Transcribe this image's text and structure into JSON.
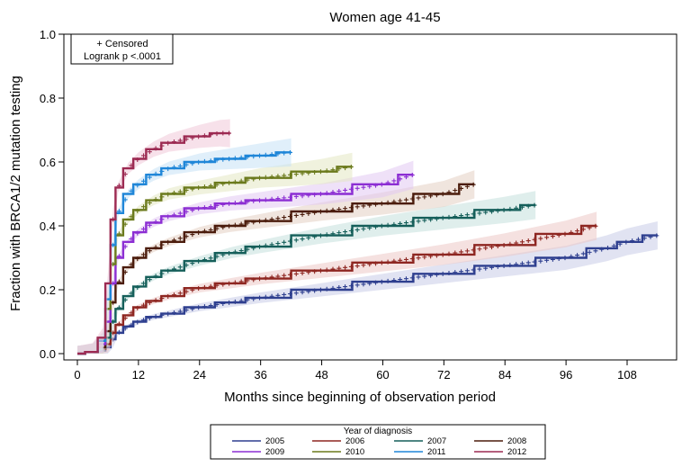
{
  "chart_data": {
    "type": "line",
    "title": "Women age 41-45",
    "xlabel": "Months since beginning of observation period",
    "ylabel": "Fraction with BRCA1/2 mutation testing",
    "xlim": [
      0,
      120
    ],
    "ylim": [
      0.0,
      1.0
    ],
    "x_ticks": [
      "0",
      "12",
      "24",
      "36",
      "48",
      "60",
      "72",
      "84",
      "96",
      "108"
    ],
    "y_ticks": [
      "0.0",
      "0.2",
      "0.4",
      "0.6",
      "0.8",
      "1.0"
    ],
    "grid": false,
    "inset_legend": {
      "line1": "+ Censored",
      "line2": "Logrank p <.0001",
      "placement": "top-left"
    },
    "legend": {
      "title": "Year of diagnosis",
      "placement": "bottom"
    },
    "series": [
      {
        "name": "2005",
        "color": "#2e3f8f",
        "band": "#c8cce8",
        "x": [
          0,
          3,
          5,
          6,
          7,
          8,
          10,
          12,
          15,
          18,
          24,
          30,
          36,
          48,
          60,
          72,
          84,
          96,
          104,
          108,
          114
        ],
        "y": [
          0,
          0.005,
          0.01,
          0.02,
          0.045,
          0.065,
          0.085,
          0.1,
          0.115,
          0.125,
          0.145,
          0.16,
          0.175,
          0.2,
          0.225,
          0.25,
          0.275,
          0.3,
          0.33,
          0.35,
          0.37
        ]
      },
      {
        "name": "2006",
        "color": "#8e2621",
        "band": "#ecc9c7",
        "x": [
          0,
          3,
          5,
          6,
          7,
          8,
          10,
          12,
          15,
          18,
          24,
          30,
          36,
          48,
          60,
          72,
          84,
          96,
          102
        ],
        "y": [
          0,
          0.005,
          0.015,
          0.03,
          0.065,
          0.09,
          0.12,
          0.145,
          0.165,
          0.18,
          0.205,
          0.22,
          0.235,
          0.26,
          0.285,
          0.31,
          0.34,
          0.375,
          0.4
        ]
      },
      {
        "name": "2007",
        "color": "#155f5a",
        "band": "#c4e0dc",
        "x": [
          0,
          3,
          5,
          6,
          7,
          8,
          10,
          12,
          15,
          18,
          24,
          30,
          36,
          48,
          60,
          72,
          84,
          90
        ],
        "y": [
          0,
          0.005,
          0.02,
          0.05,
          0.1,
          0.14,
          0.18,
          0.21,
          0.24,
          0.26,
          0.29,
          0.315,
          0.335,
          0.37,
          0.4,
          0.425,
          0.45,
          0.465
        ]
      },
      {
        "name": "2008",
        "color": "#4b1c0c",
        "band": "#e3cfc3",
        "x": [
          0,
          3,
          5,
          6,
          7,
          8,
          10,
          12,
          15,
          18,
          24,
          30,
          36,
          48,
          60,
          72,
          78
        ],
        "y": [
          0,
          0.005,
          0.02,
          0.07,
          0.16,
          0.22,
          0.27,
          0.3,
          0.33,
          0.35,
          0.38,
          0.4,
          0.415,
          0.445,
          0.47,
          0.5,
          0.53
        ]
      },
      {
        "name": "2009",
        "color": "#8c2ed3",
        "band": "#e2c9f2",
        "x": [
          0,
          3,
          5,
          6,
          7,
          8,
          10,
          12,
          15,
          18,
          24,
          30,
          36,
          48,
          60,
          66
        ],
        "y": [
          0,
          0.005,
          0.03,
          0.1,
          0.22,
          0.3,
          0.35,
          0.38,
          0.41,
          0.43,
          0.455,
          0.47,
          0.48,
          0.5,
          0.53,
          0.56
        ]
      },
      {
        "name": "2010",
        "color": "#6b7a1c",
        "band": "#e3e8c2",
        "x": [
          0,
          3,
          5,
          6,
          7,
          8,
          10,
          12,
          15,
          18,
          24,
          30,
          36,
          48,
          54
        ],
        "y": [
          0,
          0.005,
          0.04,
          0.14,
          0.28,
          0.37,
          0.42,
          0.45,
          0.48,
          0.5,
          0.52,
          0.535,
          0.55,
          0.57,
          0.585
        ]
      },
      {
        "name": "2011",
        "color": "#1f86d8",
        "band": "#c6e1f5",
        "x": [
          0,
          3,
          5,
          6,
          7,
          8,
          10,
          12,
          15,
          18,
          24,
          30,
          36,
          42
        ],
        "y": [
          0,
          0.005,
          0.04,
          0.17,
          0.34,
          0.44,
          0.5,
          0.53,
          0.56,
          0.58,
          0.6,
          0.61,
          0.62,
          0.63
        ]
      },
      {
        "name": "2012",
        "color": "#9c2a52",
        "band": "#f0c8d8",
        "x": [
          0,
          3,
          5,
          6,
          7,
          8,
          10,
          12,
          15,
          18,
          24,
          28,
          30
        ],
        "y": [
          0,
          0.005,
          0.05,
          0.22,
          0.42,
          0.52,
          0.58,
          0.61,
          0.64,
          0.66,
          0.68,
          0.69,
          0.69
        ]
      }
    ]
  }
}
